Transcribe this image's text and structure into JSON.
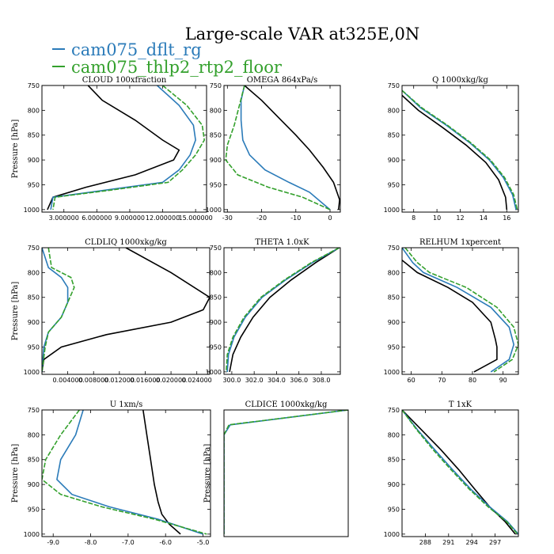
{
  "title": "Large-scale VAR at325E,0N",
  "legend": [
    {
      "label": "cam075_dflt_rg",
      "color": "#2b7bb9"
    },
    {
      "label": "cam075_thlp2_rtp2_floor",
      "color": "#33a02c"
    }
  ],
  "colors": {
    "ref": "#000000",
    "blue": "#2b7bb9",
    "green": "#33a02c"
  },
  "chart_data": [
    {
      "type": "line",
      "title": "CLOUD  100xfraction",
      "ylabel": "Pressure [hPa]",
      "xlim": [
        1.0,
        16.0
      ],
      "ylim": [
        1005,
        750
      ],
      "xticks": [
        3,
        6,
        9,
        12,
        15
      ],
      "xticklabels": [
        "3.000000",
        "6.000000",
        "9.000000",
        "12.000000",
        "15.000000"
      ],
      "yticks": [
        750,
        800,
        850,
        900,
        950,
        1000
      ],
      "series": [
        {
          "color": "ref",
          "x": [
            5.2,
            6.5,
            9.5,
            12.0,
            13.5,
            13.0,
            9.5,
            5.0,
            2.0,
            1.5
          ],
          "y": [
            750,
            780,
            820,
            860,
            880,
            900,
            930,
            955,
            975,
            1000
          ]
        },
        {
          "color": "blue",
          "x": [
            11.5,
            13.5,
            14.8,
            15.0,
            14.5,
            13.5,
            12.0,
            7.0,
            2.0,
            1.8
          ],
          "y": [
            750,
            790,
            830,
            860,
            890,
            920,
            945,
            960,
            975,
            1000
          ]
        },
        {
          "color": "green",
          "x": [
            12.0,
            14.2,
            15.6,
            15.8,
            15.0,
            13.8,
            12.5,
            7.5,
            2.2,
            2.0
          ],
          "y": [
            750,
            790,
            830,
            860,
            890,
            920,
            945,
            960,
            975,
            1000
          ]
        }
      ]
    },
    {
      "type": "line",
      "title": "OMEGA  864xPa/s",
      "ylabel": "",
      "xlim": [
        -31,
        3
      ],
      "ylim": [
        1005,
        750
      ],
      "xticks": [
        -30,
        -20,
        -10,
        0
      ],
      "xticklabels": [
        "-30",
        "-20",
        "-10",
        "0"
      ],
      "yticks": [
        750,
        800,
        850,
        900,
        950,
        1000
      ],
      "series": [
        {
          "color": "ref",
          "x": [
            -25.0,
            -20.0,
            -15.0,
            -10.0,
            -6.0,
            -2.0,
            1.0,
            2.8,
            2.5
          ],
          "y": [
            750,
            780,
            815,
            850,
            880,
            915,
            945,
            980,
            1000
          ]
        },
        {
          "color": "blue",
          "x": [
            -25.0,
            -26.0,
            -26.0,
            -25.5,
            -23.5,
            -19.0,
            -12.0,
            -6.0,
            0.0
          ],
          "y": [
            750,
            780,
            820,
            860,
            890,
            920,
            945,
            965,
            1000
          ]
        },
        {
          "color": "green",
          "x": [
            -25.0,
            -26.5,
            -28.0,
            -30.0,
            -30.5,
            -27.0,
            -18.0,
            -8.0,
            0.0
          ],
          "y": [
            750,
            790,
            830,
            870,
            900,
            930,
            955,
            975,
            1000
          ]
        }
      ]
    },
    {
      "type": "line",
      "title": "Q  1000xkg/kg",
      "ylabel": "",
      "xlim": [
        7,
        17
      ],
      "ylim": [
        1005,
        750
      ],
      "xticks": [
        8,
        10,
        12,
        14,
        16
      ],
      "xticklabels": [
        "8",
        "10",
        "12",
        "14",
        "16"
      ],
      "yticks": [
        750,
        800,
        850,
        900,
        950,
        1000
      ],
      "series": [
        {
          "color": "ref",
          "x": [
            7.0,
            8.4,
            10.5,
            12.5,
            14.2,
            15.3,
            15.9,
            16.0
          ],
          "y": [
            770,
            800,
            835,
            870,
            905,
            940,
            975,
            1000
          ]
        },
        {
          "color": "blue",
          "x": [
            7.0,
            8.6,
            10.8,
            12.8,
            14.5,
            15.7,
            16.5,
            16.8
          ],
          "y": [
            760,
            795,
            830,
            865,
            900,
            935,
            970,
            1000
          ]
        },
        {
          "color": "green",
          "x": [
            7.0,
            8.7,
            10.9,
            12.9,
            14.6,
            15.8,
            16.6,
            16.9
          ],
          "y": [
            760,
            795,
            830,
            865,
            900,
            935,
            970,
            1000
          ]
        }
      ]
    },
    {
      "type": "line",
      "title": "CLDLIQ  1000xkg/kg",
      "ylabel": "Pressure [hPa]",
      "xlim": [
        0.0,
        0.026
      ],
      "xticklabels": [
        "0.004000",
        "0.008000",
        "0.012000",
        "0.016000",
        "0.020000",
        "0.024000"
      ],
      "xticks": [
        0.004,
        0.008,
        0.012,
        0.016,
        0.02,
        0.024
      ],
      "ylim": [
        1005,
        750
      ],
      "yticks": [
        750,
        800,
        850,
        900,
        950,
        1000
      ],
      "series": [
        {
          "color": "ref",
          "x": [
            0.013,
            0.02,
            0.026,
            0.025,
            0.02,
            0.01,
            0.003,
            0.0003,
            0.0
          ],
          "y": [
            750,
            800,
            850,
            875,
            900,
            925,
            950,
            975,
            1000
          ]
        },
        {
          "color": "blue",
          "x": [
            0.0,
            0.001,
            0.003,
            0.004,
            0.004,
            0.003,
            0.001,
            0.0003,
            0.0
          ],
          "y": [
            750,
            790,
            810,
            830,
            860,
            890,
            920,
            950,
            1000
          ]
        },
        {
          "color": "green",
          "x": [
            0.001,
            0.0015,
            0.0045,
            0.005,
            0.004,
            0.003,
            0.001,
            0.0005,
            0.0
          ],
          "y": [
            750,
            790,
            810,
            830,
            860,
            890,
            920,
            950,
            1000
          ]
        }
      ]
    },
    {
      "type": "line",
      "title": "THETA  1.0xK",
      "ylabel": "",
      "xlim": [
        299.3,
        309.7
      ],
      "ylim": [
        1005,
        750
      ],
      "xticks": [
        300,
        302,
        304,
        306,
        308
      ],
      "xticklabels": [
        "300.0",
        "302.0",
        "304.0",
        "306.0",
        "308.0"
      ],
      "yticks": [
        750,
        800,
        850,
        900,
        950,
        1000
      ],
      "series": [
        {
          "color": "ref",
          "x": [
            309.6,
            307.5,
            305.3,
            303.4,
            301.9,
            300.8,
            300.1,
            299.8
          ],
          "y": [
            750,
            780,
            815,
            850,
            890,
            930,
            965,
            1000
          ]
        },
        {
          "color": "blue",
          "x": [
            309.6,
            307.2,
            304.8,
            302.7,
            301.2,
            300.2,
            299.7,
            299.6
          ],
          "y": [
            750,
            780,
            815,
            850,
            890,
            930,
            965,
            1000
          ]
        },
        {
          "color": "green",
          "x": [
            309.6,
            307.1,
            304.7,
            302.6,
            301.1,
            300.1,
            299.6,
            299.5
          ],
          "y": [
            750,
            780,
            815,
            850,
            890,
            930,
            965,
            1000
          ]
        }
      ]
    },
    {
      "type": "line",
      "title": "RELHUM  1xpercent",
      "ylabel": "",
      "xlim": [
        57,
        95
      ],
      "ylim": [
        1005,
        750
      ],
      "xticks": [
        60,
        70,
        80,
        90
      ],
      "xticklabels": [
        "60",
        "70",
        "80",
        "90"
      ],
      "yticks": [
        750,
        800,
        850,
        900,
        950,
        1000
      ],
      "series": [
        {
          "color": "ref",
          "x": [
            57.0,
            62.0,
            72.0,
            80.0,
            86.0,
            87.5,
            88.0,
            88.0,
            80.5
          ],
          "y": [
            775,
            800,
            830,
            860,
            900,
            935,
            950,
            975,
            1000
          ]
        },
        {
          "color": "blue",
          "x": [
            57.0,
            60.5,
            64.0,
            75.0,
            86.0,
            92.0,
            93.5,
            92.0,
            86.0
          ],
          "y": [
            750,
            780,
            800,
            830,
            870,
            910,
            945,
            975,
            1000
          ]
        },
        {
          "color": "green",
          "x": [
            58.0,
            62.0,
            66.0,
            78.0,
            88.0,
            93.5,
            95.0,
            93.0,
            87.0
          ],
          "y": [
            750,
            780,
            800,
            830,
            870,
            910,
            945,
            975,
            1000
          ]
        }
      ]
    },
    {
      "type": "line",
      "title": "U  1xm/s",
      "ylabel": "Pressure [hPa]",
      "xlim": [
        -9.3,
        -4.8
      ],
      "ylim": [
        1005,
        750
      ],
      "xticks": [
        -9,
        -8,
        -7,
        -6,
        -5
      ],
      "xticklabels": [
        "-9.0",
        "-8.0",
        "-7.0",
        "-6.0",
        "-5.0"
      ],
      "yticks": [
        750,
        800,
        850,
        900,
        950,
        1000
      ],
      "series": [
        {
          "color": "ref",
          "x": [
            -6.6,
            -6.5,
            -6.4,
            -6.3,
            -6.2,
            -6.1,
            -5.9,
            -5.6
          ],
          "y": [
            750,
            800,
            850,
            900,
            935,
            960,
            980,
            1000
          ]
        },
        {
          "color": "blue",
          "x": [
            -8.2,
            -8.4,
            -8.8,
            -8.9,
            -8.5,
            -7.5,
            -6.2,
            -5.0
          ],
          "y": [
            750,
            800,
            850,
            890,
            920,
            945,
            970,
            1000
          ]
        },
        {
          "color": "green",
          "x": [
            -8.3,
            -8.8,
            -9.2,
            -9.3,
            -8.8,
            -7.7,
            -6.3,
            -4.9
          ],
          "y": [
            750,
            800,
            850,
            890,
            920,
            945,
            970,
            1000
          ]
        }
      ]
    },
    {
      "type": "line",
      "title": "CLDICE  1000xkg/kg",
      "ylabel": "Pressure [hPa]",
      "xlim": [
        0,
        1
      ],
      "ylim": [
        1005,
        750
      ],
      "xticks": [],
      "xticklabels": [],
      "yticks": [],
      "series": [
        {
          "color": "blue",
          "x": [
            1.0,
            0.05,
            0.0,
            0.0
          ],
          "y": [
            750,
            780,
            800,
            1000
          ]
        },
        {
          "color": "green",
          "x": [
            1.0,
            0.04,
            0.0,
            0.0
          ],
          "y": [
            750,
            780,
            800,
            1000
          ]
        }
      ]
    },
    {
      "type": "line",
      "title": "T  1xK",
      "ylabel": "",
      "xlim": [
        285,
        300
      ],
      "ylim": [
        1005,
        750
      ],
      "xticks": [
        288,
        291,
        294,
        297
      ],
      "xticklabels": [
        "288",
        "291",
        "294",
        "297"
      ],
      "yticks": [
        750,
        800,
        850,
        900,
        950,
        1000
      ],
      "series": [
        {
          "color": "ref",
          "x": [
            285.0,
            287.5,
            290.0,
            292.3,
            294.4,
            296.3,
            298.3,
            299.6
          ],
          "y": [
            750,
            790,
            830,
            870,
            910,
            945,
            975,
            1000
          ]
        },
        {
          "color": "blue",
          "x": [
            285.0,
            287.0,
            289.2,
            291.5,
            293.9,
            296.3,
            298.6,
            300.0
          ],
          "y": [
            750,
            790,
            830,
            870,
            910,
            945,
            975,
            1000
          ]
        },
        {
          "color": "green",
          "x": [
            285.0,
            286.9,
            289.0,
            291.3,
            293.7,
            296.1,
            298.5,
            299.9
          ],
          "y": [
            750,
            790,
            830,
            870,
            910,
            945,
            975,
            1000
          ]
        }
      ]
    }
  ]
}
